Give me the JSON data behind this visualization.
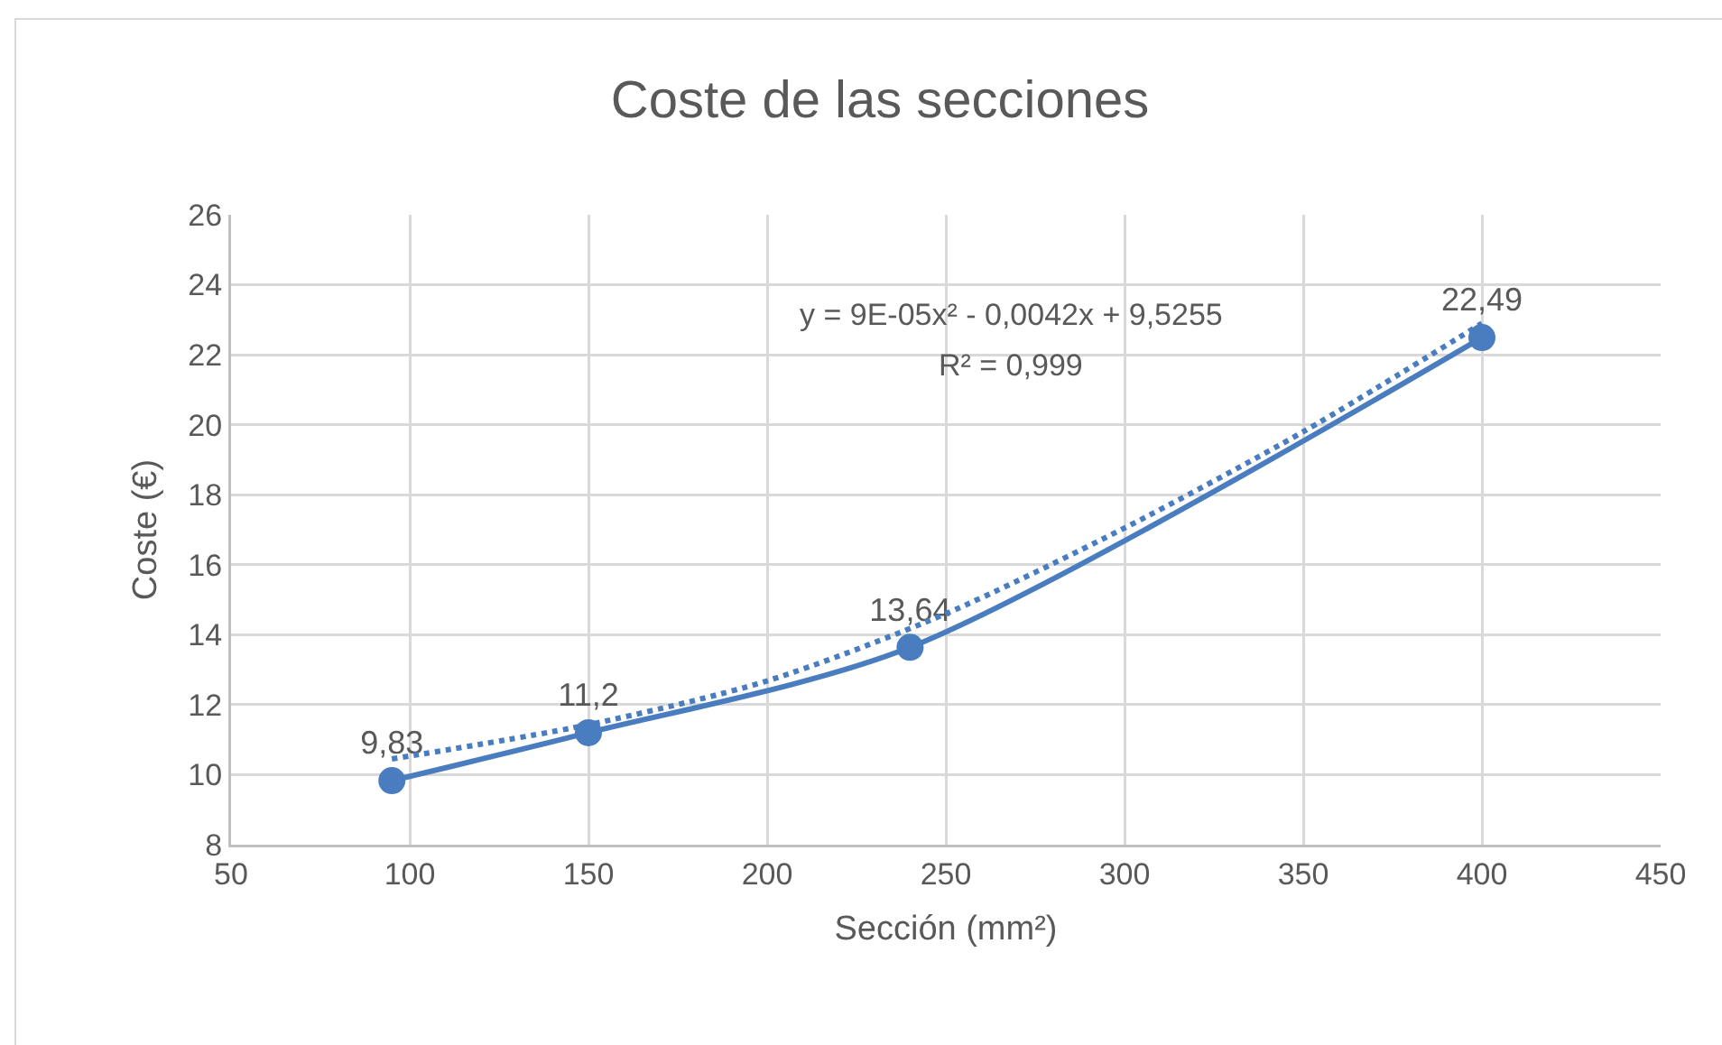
{
  "chart_data": {
    "type": "line",
    "title": "Coste de las secciones",
    "xlabel": "Sección (mm²)",
    "ylabel": "Coste (€)",
    "annotations": [
      "y = 9E-05x² - 0,0042x + 9,5255",
      "R² = 0,999"
    ],
    "xlim": [
      50,
      450
    ],
    "xticks": [
      50,
      100,
      150,
      200,
      250,
      300,
      350,
      400,
      450
    ],
    "ylim": [
      8,
      26
    ],
    "yticks": [
      8,
      10,
      12,
      14,
      16,
      18,
      20,
      22,
      24,
      26
    ],
    "grid": true,
    "marker": "circle",
    "line_style": "solid",
    "series": [
      {
        "color": "#4a7dbf",
        "x": [
          95,
          150,
          240,
          400
        ],
        "values": [
          9.83,
          11.2,
          13.64,
          22.49
        ],
        "value_labels": [
          "9,83",
          "11,2",
          "13,64",
          "22,49"
        ]
      },
      {
        "type": "line",
        "color": "#4a7dbf",
        "x": [
          95,
          150,
          200,
          250,
          300,
          350,
          400
        ],
        "values": [
          10.45,
          11.43,
          12.68,
          14.6,
          17.05,
          19.8,
          22.9
        ],
        "marker": "none",
        "line_style": "dotted"
      }
    ]
  }
}
